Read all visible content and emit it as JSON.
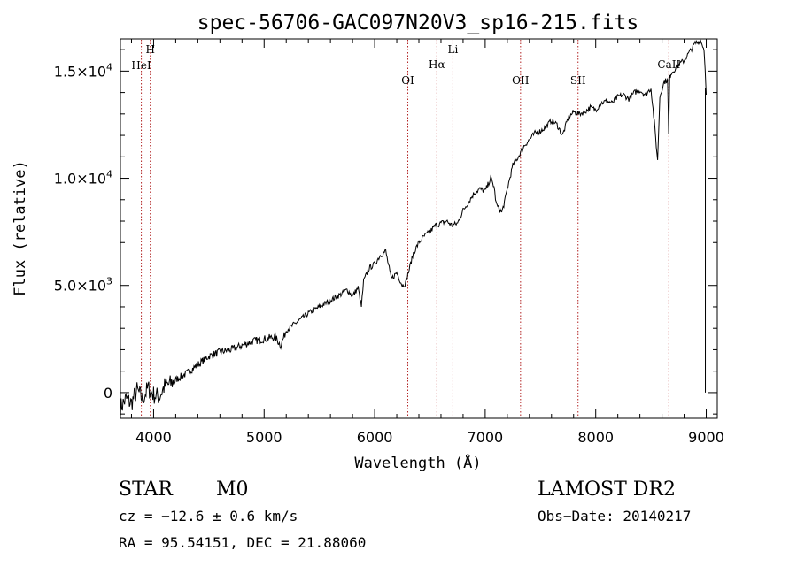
{
  "chart_data": {
    "type": "line",
    "title": "spec-56706-GAC097N20V3_sp16-215.fits",
    "xlabel": "Wavelength (Å)",
    "ylabel": "Flux (relative)",
    "xlim": [
      3700,
      9100
    ],
    "ylim": [
      -1200,
      16500
    ],
    "x_ticks": [
      4000,
      5000,
      6000,
      7000,
      8000,
      9000
    ],
    "x_tick_labels": [
      "4000",
      "5000",
      "6000",
      "7000",
      "8000",
      "9000"
    ],
    "y_ticks": [
      {
        "value": 0,
        "mant": "0",
        "exp": ""
      },
      {
        "value": 5000,
        "mant": "5.0×10",
        "exp": "3"
      },
      {
        "value": 10000,
        "mant": "1.0×10",
        "exp": "4"
      },
      {
        "value": 15000,
        "mant": "1.5×10",
        "exp": "4"
      }
    ],
    "series": [
      {
        "x": [
          3700,
          3750,
          3800,
          3850,
          3900,
          3950,
          4000,
          4050,
          4100,
          4150,
          4200,
          4300,
          4400,
          4500,
          4600,
          4700,
          4800,
          4900,
          5000,
          5100,
          5150,
          5200,
          5300,
          5400,
          5500,
          5600,
          5700,
          5750,
          5800,
          5850,
          5880,
          5900,
          5950,
          6000,
          6050,
          6100,
          6150,
          6200,
          6250,
          6280,
          6300,
          6350,
          6400,
          6450,
          6500,
          6550,
          6600,
          6650,
          6700,
          6750,
          6800,
          6850,
          6900,
          6950,
          7000,
          7050,
          7080,
          7100,
          7120,
          7150,
          7180,
          7200,
          7250,
          7300,
          7350,
          7400,
          7450,
          7500,
          7550,
          7600,
          7650,
          7700,
          7750,
          7800,
          7850,
          7900,
          7950,
          8000,
          8050,
          8100,
          8150,
          8200,
          8250,
          8300,
          8350,
          8400,
          8450,
          8500,
          8530,
          8560,
          8580,
          8600,
          8620,
          8650,
          8660,
          8670,
          8680,
          8700,
          8750,
          8800,
          8850,
          8900,
          8950,
          8980,
          8990,
          9000
        ],
        "y": [
          -700,
          -300,
          -500,
          100,
          -300,
          200,
          -100,
          -200,
          300,
          400,
          600,
          900,
          1300,
          1700,
          1900,
          2000,
          2200,
          2400,
          2500,
          2600,
          2200,
          2900,
          3300,
          3700,
          4000,
          4300,
          4600,
          4800,
          4500,
          4900,
          4000,
          5200,
          5800,
          6000,
          6400,
          6600,
          5300,
          5600,
          5000,
          5100,
          5500,
          6500,
          7000,
          7300,
          7500,
          7800,
          7900,
          8000,
          7800,
          7900,
          8500,
          8900,
          9300,
          9500,
          9400,
          10000,
          9600,
          8800,
          8600,
          8400,
          9000,
          9500,
          10600,
          11000,
          11500,
          11800,
          12100,
          12200,
          12400,
          12700,
          12500,
          12000,
          12800,
          13100,
          13000,
          13100,
          13300,
          13200,
          13500,
          13600,
          13500,
          13800,
          13900,
          13700,
          14000,
          14100,
          13900,
          14200,
          12600,
          10800,
          13800,
          14200,
          14500,
          14600,
          12000,
          14700,
          14900,
          15000,
          15300,
          15500,
          15900,
          16300,
          16400,
          16000,
          15100,
          13900
        ]
      }
    ],
    "line_marks": [
      {
        "label": "HeI",
        "wavelength": 3889,
        "level": "low"
      },
      {
        "label": "H",
        "wavelength": 3970,
        "level": "top"
      },
      {
        "label": "OI",
        "wavelength": 6300,
        "level": "low"
      },
      {
        "label": "Hα",
        "wavelength": 6563,
        "level": "mid"
      },
      {
        "label": "Li",
        "wavelength": 6708,
        "level": "high"
      },
      {
        "label": "OII",
        "wavelength": 7320,
        "level": "low"
      },
      {
        "label": "SII",
        "wavelength": 7840,
        "level": "low"
      },
      {
        "label": "CaII",
        "wavelength": 8662,
        "level": "mid"
      }
    ],
    "colors": {
      "spectrum": "#000000",
      "lines": "#b22222",
      "axes": "#000000"
    }
  },
  "info": {
    "object_class": "STAR",
    "subclass": "M0",
    "survey": "LAMOST DR2",
    "cz": "cz = −12.6 ± 0.6 km/s",
    "obs_date": "Obs−Date: 20140217",
    "coords": "RA =  95.54151, DEC =  21.88060"
  }
}
